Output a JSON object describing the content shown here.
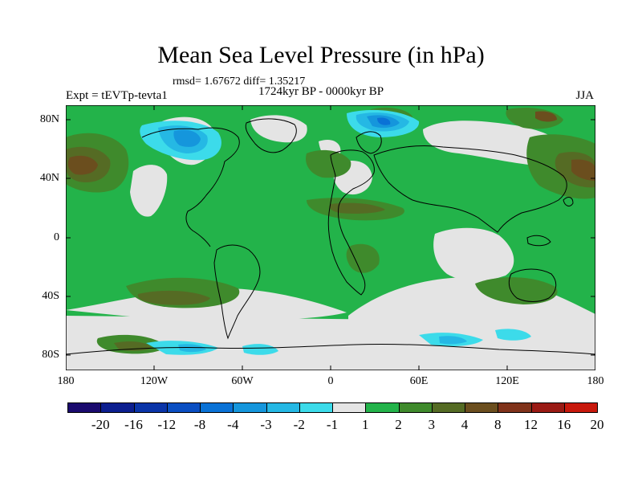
{
  "header": {
    "title": "Mean Sea Level Pressure (in hPa)",
    "stats": "rmsd= 1.67672 diff= 1.35217",
    "experiment": "Expt = tEVTp-tevta1",
    "period": "1724kyr BP - 0000kyr BP",
    "season": "JJA"
  },
  "axes": {
    "lat_ticks": [
      "80N",
      "40N",
      "0",
      "40S",
      "80S"
    ],
    "lon_ticks": [
      "180",
      "120W",
      "60W",
      "0",
      "60E",
      "120E",
      "180"
    ]
  },
  "legend": {
    "colors": [
      "#1a0a6e",
      "#0c1e8f",
      "#0a34a8",
      "#0a4ec2",
      "#0a72d6",
      "#1596dc",
      "#25b8e4",
      "#3cdbea",
      "#e4e4e4",
      "#23b34a",
      "#3f8a2c",
      "#556b24",
      "#6b4e1e",
      "#80321a",
      "#9a1a14",
      "#c8180c"
    ],
    "labels": [
      "-20",
      "-16",
      "-12",
      "-8",
      "-4",
      "-3",
      "-2",
      "-1",
      "1",
      "2",
      "3",
      "4",
      "8",
      "12",
      "16",
      "20"
    ]
  }
}
